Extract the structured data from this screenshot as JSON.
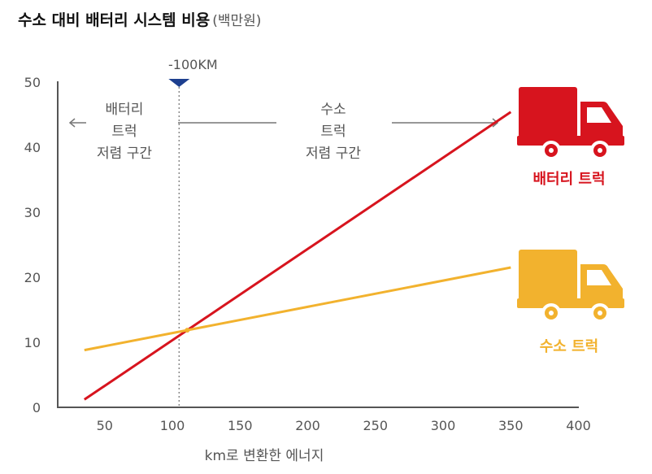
{
  "title": {
    "main": "수소 대비 배터리 시스템 비용",
    "unit": "(백만원)"
  },
  "chart_data": {
    "type": "line",
    "xlabel": "km로 변환한 에너지",
    "ylabel": "",
    "xlim": [
      25,
      400
    ],
    "ylim": [
      0,
      50
    ],
    "xticks": [
      50,
      100,
      150,
      200,
      250,
      300,
      350,
      400
    ],
    "yticks": [
      0,
      10,
      20,
      30,
      40,
      50
    ],
    "grid": false,
    "series": [
      {
        "name": "배터리 트럭",
        "color": "#d7141e",
        "x": [
          35,
          350
        ],
        "y": [
          1.2,
          45.4
        ]
      },
      {
        "name": "수소 트럭",
        "color": "#f2b22e",
        "x": [
          35,
          350
        ],
        "y": [
          8.8,
          21.5
        ]
      }
    ],
    "crossover": {
      "x": 105,
      "label": "-100KM"
    },
    "annotations": {
      "left_zone": [
        "배터리",
        "트럭",
        "저렴 구간"
      ],
      "right_zone": [
        "수소",
        "트럭",
        "저렴 구간"
      ]
    }
  },
  "colors": {
    "battery": "#d7141e",
    "hydrogen": "#f2b22e",
    "marker": "#1d3f8f",
    "axis": "#555555"
  },
  "icons": {
    "battery_truck": "truck-icon",
    "hydrogen_truck": "truck-icon"
  }
}
